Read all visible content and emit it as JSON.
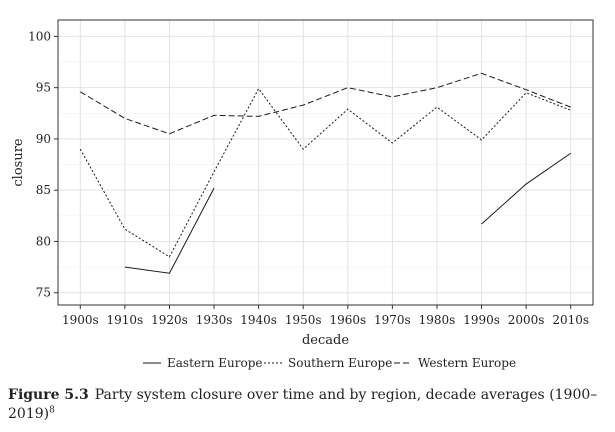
{
  "chart_data": {
    "type": "line",
    "title": "",
    "xlabel": "decade",
    "ylabel": "closure",
    "categories": [
      "1900s",
      "1910s",
      "1920s",
      "1930s",
      "1940s",
      "1950s",
      "1960s",
      "1970s",
      "1980s",
      "1990s",
      "2000s",
      "2010s"
    ],
    "ylim": [
      73.8,
      101.6
    ],
    "yticks": [
      75,
      80,
      85,
      90,
      95,
      100
    ],
    "grid": true,
    "legend_position": "bottom",
    "series": [
      {
        "name": "Eastern Europe",
        "dash": "solid",
        "values": [
          null,
          77.5,
          76.9,
          85.2,
          null,
          null,
          null,
          null,
          null,
          81.7,
          85.6,
          88.6
        ]
      },
      {
        "name": "Southern Europe",
        "dash": "dotted",
        "values": [
          89.0,
          81.2,
          78.5,
          86.8,
          94.9,
          89.0,
          92.9,
          89.6,
          93.1,
          89.9,
          94.5,
          92.8
        ]
      },
      {
        "name": "Western Europe",
        "dash": "dashed",
        "values": [
          94.6,
          92.0,
          90.5,
          92.3,
          92.2,
          93.3,
          95.0,
          94.1,
          95.0,
          96.4,
          94.8,
          93.1
        ]
      }
    ]
  },
  "caption": {
    "label": "Figure 5.3",
    "text": "Party system closure over time and by region, decade averages (1900–2019)",
    "footnote": "8"
  }
}
